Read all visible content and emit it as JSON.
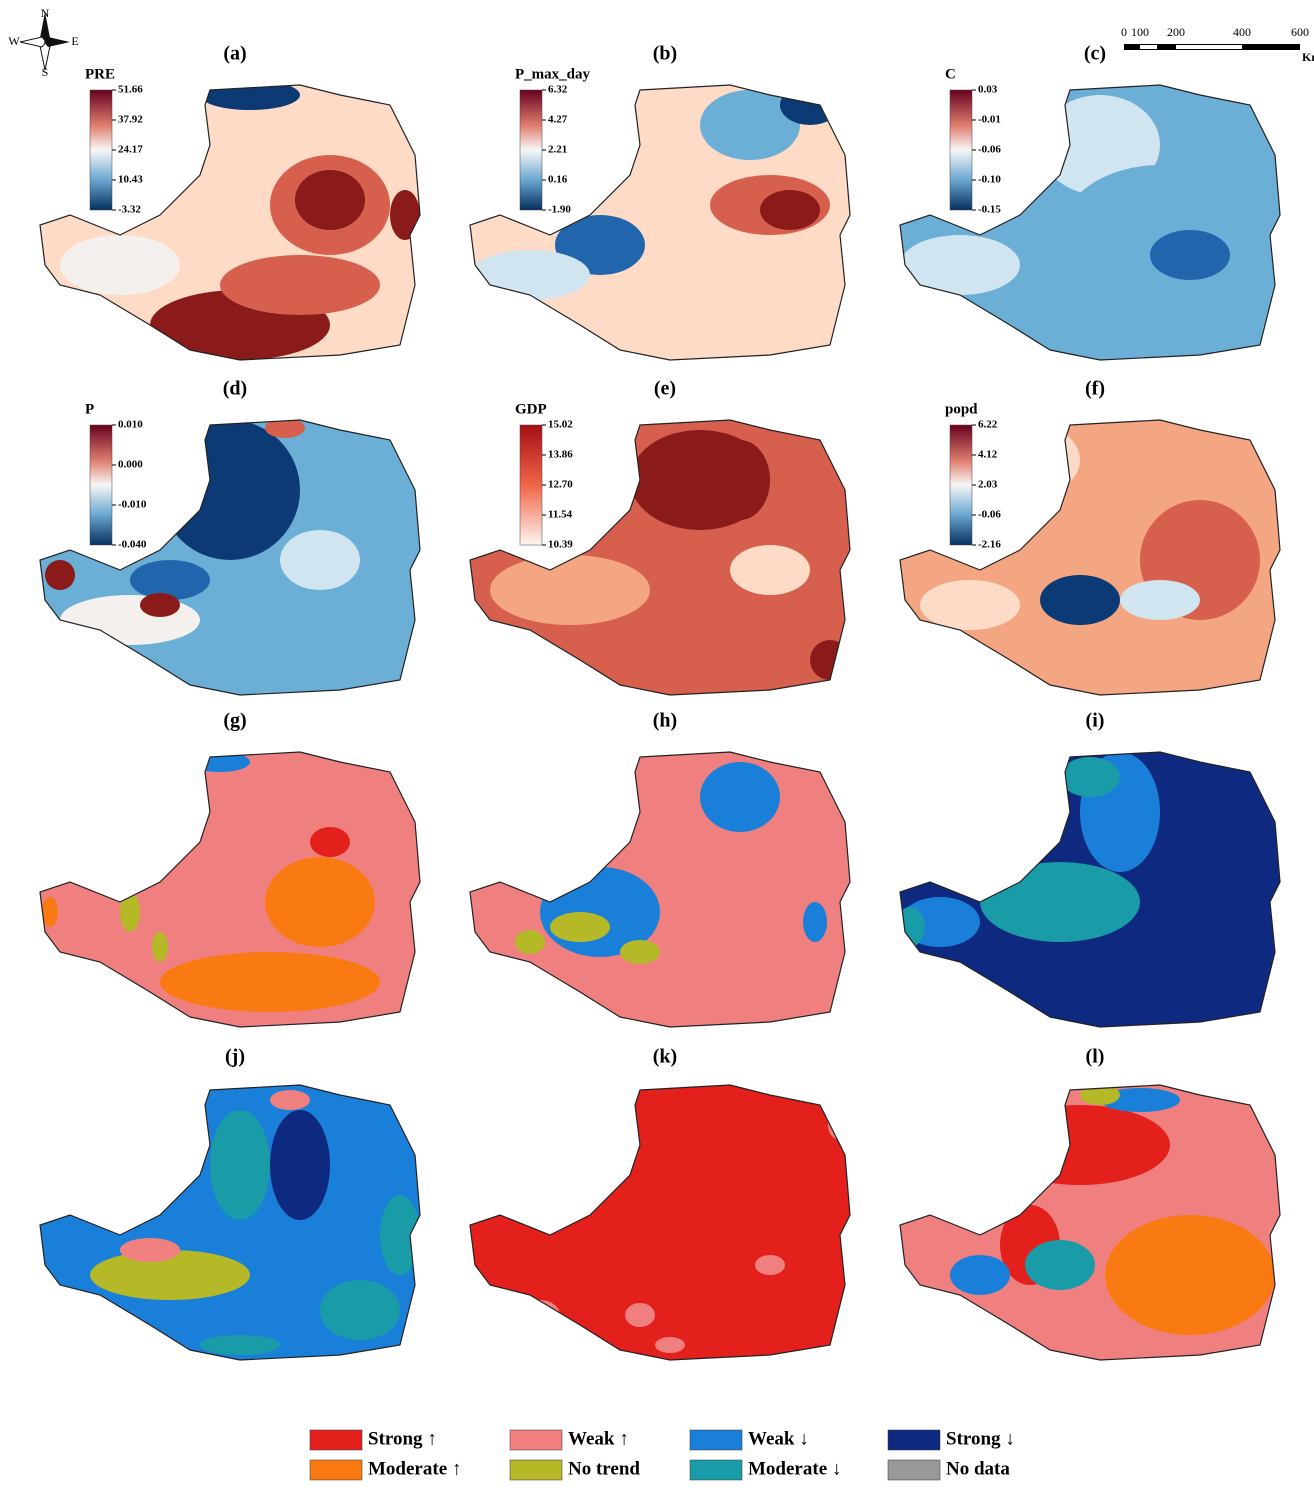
{
  "compass": {
    "north": "N",
    "south": "S",
    "west": "W",
    "east": "E"
  },
  "scale_bar": {
    "labels": [
      "0",
      "100",
      "200",
      "400",
      "600"
    ],
    "unit": "Km"
  },
  "panels": [
    {
      "label": "(a)",
      "legend_title": "PRE",
      "ticks": [
        "51.66",
        "37.92",
        "24.17",
        "10.43",
        "-3.32"
      ]
    },
    {
      "label": "(b)",
      "legend_title": "P_max_day",
      "ticks": [
        "6.32",
        "4.27",
        "2.21",
        "0.16",
        "-1.90"
      ]
    },
    {
      "label": "(c)",
      "legend_title": "C",
      "ticks": [
        "0.03",
        "-0.01",
        "-0.06",
        "-0.10",
        "-0.15"
      ]
    },
    {
      "label": "(d)",
      "legend_title": "P",
      "ticks": [
        "0.010",
        "0.000",
        "-0.010",
        "-0.040"
      ]
    },
    {
      "label": "(e)",
      "legend_title": "GDP",
      "ticks": [
        "15.02",
        "13.86",
        "12.70",
        "11.54",
        "10.39"
      ]
    },
    {
      "label": "(f)",
      "legend_title": "popd",
      "ticks": [
        "6.22",
        "4.12",
        "2.03",
        "-0.06",
        "-2.16"
      ]
    },
    {
      "label": "(g)"
    },
    {
      "label": "(h)"
    },
    {
      "label": "(i)"
    },
    {
      "label": "(j)"
    },
    {
      "label": "(k)"
    },
    {
      "label": "(l)"
    }
  ],
  "legend": [
    {
      "name": "Strong ↑",
      "color": "#e3201b"
    },
    {
      "name": "Moderate ↑",
      "color": "#f97a12"
    },
    {
      "name": "Weak ↑",
      "color": "#f08080"
    },
    {
      "name": "No trend",
      "color": "#b5b827"
    },
    {
      "name": "Weak ↓",
      "color": "#1a7fd9"
    },
    {
      "name": "Moderate ↓",
      "color": "#1a9ba8"
    },
    {
      "name": "Strong ↓",
      "color": "#0d2a80"
    },
    {
      "name": "No data",
      "color": "#999999"
    }
  ]
}
